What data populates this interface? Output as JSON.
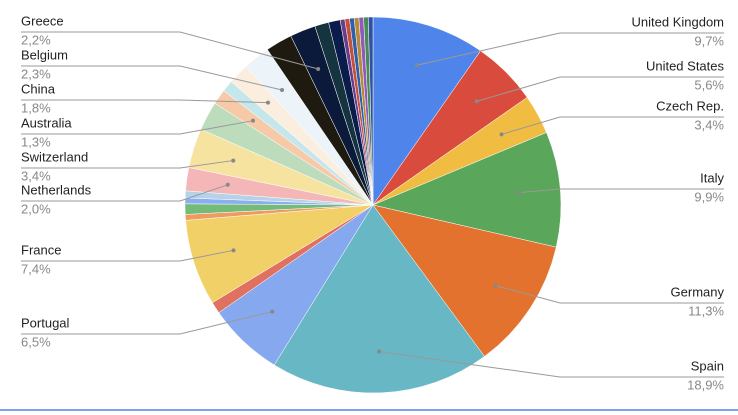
{
  "chart_data": {
    "type": "pie",
    "categories": [
      "United Kingdom",
      "United States",
      "Czech Rep.",
      "Italy",
      "Germany",
      "Spain",
      "Portugal",
      null,
      "France",
      null,
      null,
      null,
      null,
      "Netherlands",
      "Switzerland",
      null,
      "Australia",
      null,
      "China",
      "Belgium",
      null,
      "Greece",
      null,
      null,
      null,
      null,
      null,
      null,
      null,
      null,
      null
    ],
    "values": [
      9.7,
      5.6,
      3.4,
      9.9,
      11.3,
      18.9,
      6.5,
      1.0,
      7.4,
      0.5,
      0.9,
      0.5,
      0.6,
      2.0,
      3.4,
      2.5,
      1.3,
      1.0,
      1.8,
      2.3,
      2.3,
      2.2,
      1.2,
      1.0,
      0.4,
      0.4,
      0.4,
      0.4,
      0.4,
      0.4,
      0.4
    ],
    "value_labels": [
      "9,7%",
      "5,6%",
      "3,4%",
      "9,9%",
      "11,3%",
      "18,9%",
      "6,5%",
      null,
      "7,4%",
      null,
      null,
      null,
      null,
      "2,0%",
      "3,4%",
      null,
      "1,3%",
      null,
      "1,8%",
      "2,3%",
      null,
      "2,2%",
      null,
      null,
      null,
      null,
      null,
      null,
      null,
      null,
      null
    ],
    "colors": [
      "#4f84ea",
      "#d94c3d",
      "#f0bd42",
      "#5aa65a",
      "#e3722f",
      "#68b7c4",
      "#86a8ef",
      "#e0705f",
      "#f1d167",
      "#ee9b60",
      "#74bb7a",
      "#8aaef0",
      "#b4d3e8",
      "#f4b6b6",
      "#f7e3a0",
      "#bcdcbc",
      "#f6c9a8",
      "#c5e7ec",
      "#fbeede",
      "#ecf3f9",
      "#1e1a10",
      "#0b1a3a",
      "#16343f",
      "#0a1c4c",
      "#6a3d8a",
      "#c2523d",
      "#2f5fa8",
      "#b58a3a",
      "#8e5cb8",
      "#4a8a5a",
      "#3050a0"
    ]
  }
}
